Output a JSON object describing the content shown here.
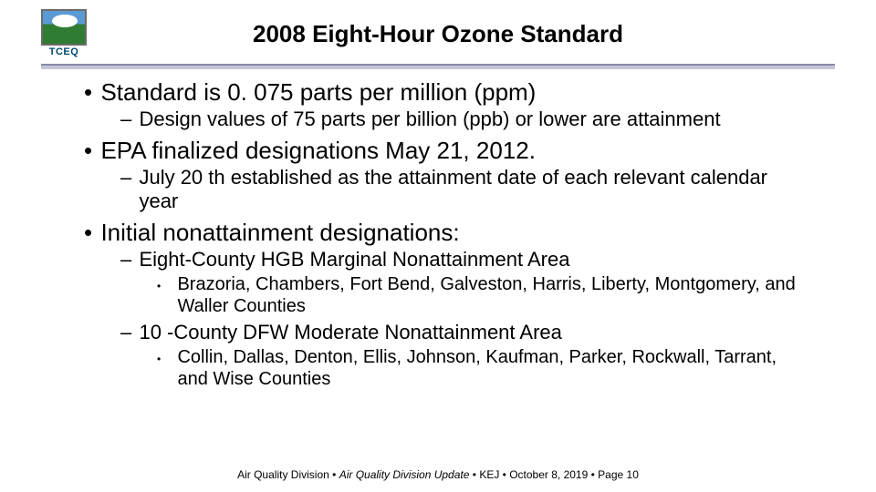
{
  "logo": {
    "abbr": "TCEQ"
  },
  "title": "2008 Eight-Hour Ozone Standard",
  "bullets": [
    {
      "text": "Standard is 0. 075 parts per million (ppm)",
      "sub": [
        {
          "text": "Design values of 75 parts per billion (ppb) or lower are attainment"
        }
      ]
    },
    {
      "text": "EPA finalized designations May 21, 2012.",
      "sub": [
        {
          "text": "July 20 th established as the attainment date of each relevant calendar year"
        }
      ]
    },
    {
      "text": "Initial nonattainment designations:",
      "sub": [
        {
          "text": "Eight-County HGB Marginal Nonattainment Area",
          "sub": [
            {
              "text": "Brazoria, Chambers, Fort Bend, Galveston, Harris, Liberty, Montgomery, and Waller Counties"
            }
          ]
        },
        {
          "text": "10 -County DFW Moderate Nonattainment Area",
          "sub": [
            {
              "text": "Collin, Dallas, Denton, Ellis, Johnson, Kaufman, Parker, Rockwall, Tarrant, and Wise Counties"
            }
          ]
        }
      ]
    }
  ],
  "footer": {
    "division": "Air Quality Division",
    "sep": " • ",
    "topic": "Air Quality Division Update",
    "author": "KEJ",
    "date": "October 8, 2019",
    "page": "Page 10"
  },
  "colors": {
    "divider_top": "#8a8aa8",
    "divider_bottom": "#c5c5d8",
    "text": "#000000",
    "logo_text": "#004a6f"
  }
}
